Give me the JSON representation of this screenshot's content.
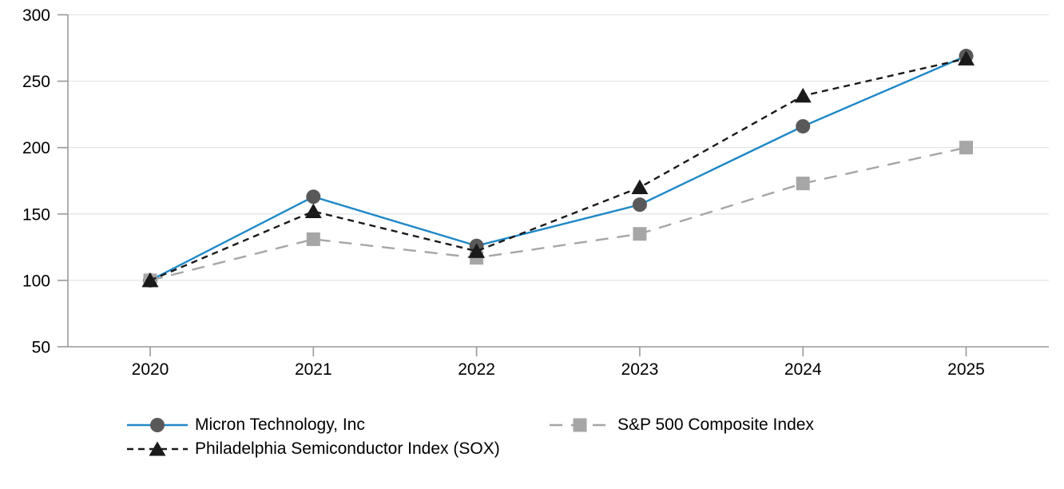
{
  "chart_data": {
    "type": "line",
    "x_labels": [
      "2020",
      "2021",
      "2022",
      "2023",
      "2024",
      "2025"
    ],
    "ylim": [
      50,
      300
    ],
    "yticks": [
      50,
      100,
      150,
      200,
      250,
      300
    ],
    "grid": true,
    "legend_position": "bottom-left",
    "axis_color": "#999999",
    "grid_color": "#e6e6e6",
    "text_color": "#000000",
    "series": [
      {
        "name": "Micron Technology, Inc",
        "values": [
          100,
          163,
          126,
          157,
          216,
          269
        ],
        "color": "#1e88c7",
        "marker": "circle",
        "marker_color": "#595959",
        "dash": ""
      },
      {
        "name": "S&P 500 Composite Index",
        "values": [
          100,
          131,
          117,
          135,
          173,
          200
        ],
        "color": "#a6a6a6",
        "marker": "square",
        "marker_color": "#a6a6a6",
        "dash": "16 11"
      },
      {
        "name": "Philadelphia Semiconductor Index (SOX)",
        "values": [
          100,
          152,
          122,
          170,
          239,
          267
        ],
        "color": "#1a1a1a",
        "marker": "triangle",
        "marker_color": "#1a1a1a",
        "dash": "8 6"
      }
    ]
  }
}
